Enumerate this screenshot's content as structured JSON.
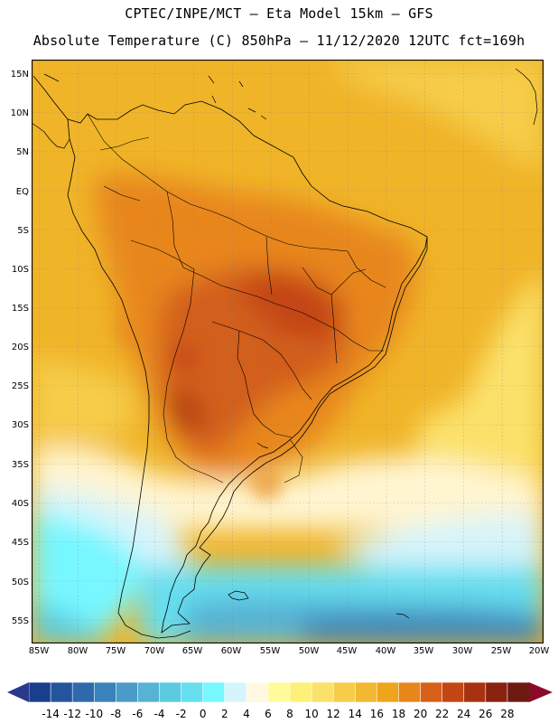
{
  "header": {
    "line1": "CPTEC/INPE/MCT —  Eta Model 15km — GFS",
    "line2": "Absolute Temperature (C) 850hPa — 11/12/2020 12UTC fct=169h"
  },
  "axes": {
    "lat_labels": [
      "15N",
      "10N",
      "5N",
      "EQ",
      "5S",
      "10S",
      "15S",
      "20S",
      "25S",
      "30S",
      "35S",
      "40S",
      "45S",
      "50S",
      "55S"
    ],
    "lon_labels": [
      "85W",
      "80W",
      "75W",
      "70W",
      "65W",
      "60W",
      "55W",
      "50W",
      "45W",
      "40W",
      "35W",
      "30W",
      "25W",
      "20W"
    ]
  },
  "colorbar": {
    "labels": [
      "-14",
      "-12",
      "-10",
      "-8",
      "-6",
      "-4",
      "-2",
      "0",
      "2",
      "4",
      "6",
      "8",
      "10",
      "12",
      "14",
      "16",
      "18",
      "20",
      "22",
      "24",
      "26",
      "28"
    ],
    "colors": [
      "#1a3e8e",
      "#24559c",
      "#2d6aac",
      "#3a82bb",
      "#4a9bc9",
      "#56b3d4",
      "#5ccbe0",
      "#66dff0",
      "#77f7ff",
      "#d6f4fb",
      "#fff9e0",
      "#fffb9a",
      "#fff07a",
      "#fbe16a",
      "#f6cc4a",
      "#f2b830",
      "#eea51a",
      "#e8861c",
      "#d8601a",
      "#c44514",
      "#a83210",
      "#8a2210",
      "#6e1a10"
    ],
    "under_color": "#2a3a8a",
    "over_color": "#8a0a2a"
  },
  "legend": {
    "ocean_warm": "#f0b428",
    "land_hot": "#d25f1c"
  }
}
